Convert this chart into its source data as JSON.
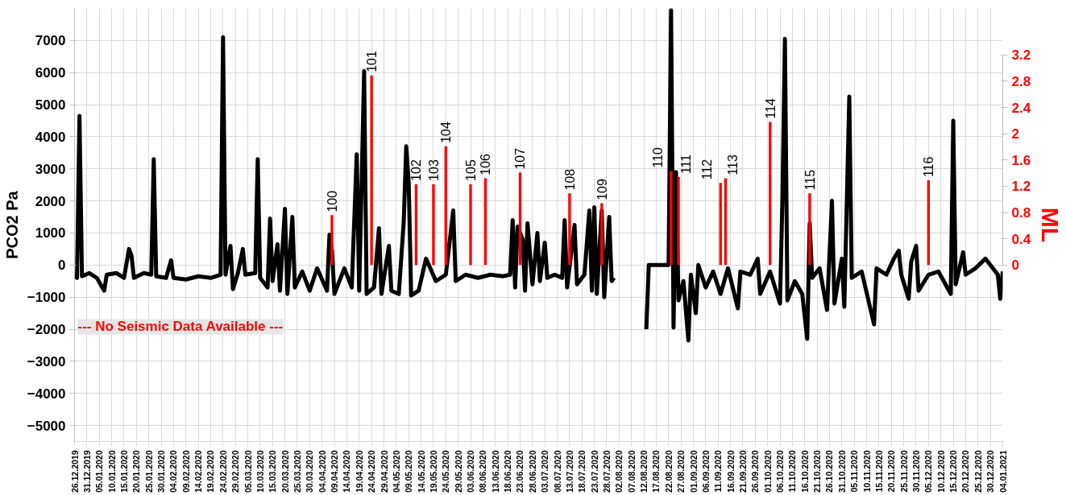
{
  "chart_data": {
    "type": "line",
    "ylabel": "PCO2 Pa",
    "y2label": "ML",
    "annotations": [
      "--- No Seismic Data Available ---",
      {
        "text": "100",
        "x": "2020-04-08",
        "y": 1550
      },
      {
        "text": "101",
        "x": "2020-04-24",
        "y": 5910
      },
      {
        "text": "102",
        "x": "2020-05-12",
        "y": 2520
      },
      {
        "text": "103",
        "x": "2020-05-19",
        "y": 2520
      },
      {
        "text": "104",
        "x": "2020-05-24",
        "y": 3700
      },
      {
        "text": "105",
        "x": "2020-06-03",
        "y": 2520
      },
      {
        "text": "106",
        "x": "2020-06-09",
        "y": 2700
      },
      {
        "text": "107",
        "x": "2020-06-23",
        "y": 2880
      },
      {
        "text": "108",
        "x": "2020-07-13",
        "y": 2230
      },
      {
        "text": "109",
        "x": "2020-07-26",
        "y": 1920
      },
      {
        "text": "110",
        "x": "2020-08-23",
        "y": 2930
      },
      {
        "text": "111",
        "x": "2020-08-26",
        "y": 2740
      },
      {
        "text": "112",
        "x": "2020-09-12",
        "y": 2560
      },
      {
        "text": "113",
        "x": "2020-09-14",
        "y": 2700
      },
      {
        "text": "114",
        "x": "2020-10-02",
        "y": 4460
      },
      {
        "text": "115",
        "x": "2020-10-18",
        "y": 2230
      },
      {
        "text": "116",
        "x": "2020-12-05",
        "y": 2640
      }
    ],
    "xlim": [
      "2019-12-26",
      "2021-01-04"
    ],
    "xticks": [
      {
        "value": "2019-12-26",
        "label": "26.12.2019"
      },
      {
        "value": "2019-12-31",
        "label": "31.12.2019"
      },
      {
        "value": "2020-01-05",
        "label": "05.01.2020"
      },
      {
        "value": "2020-01-10",
        "label": "10.01.2020"
      },
      {
        "value": "2020-01-15",
        "label": "15.01.2020"
      },
      {
        "value": "2020-01-20",
        "label": "20.01.2020"
      },
      {
        "value": "2020-01-25",
        "label": "25.01.2020"
      },
      {
        "value": "2020-01-30",
        "label": "30.01.2020"
      },
      {
        "value": "2020-02-04",
        "label": "04.02.2020"
      },
      {
        "value": "2020-02-09",
        "label": "09.02.2020"
      },
      {
        "value": "2020-02-14",
        "label": "14.02.2020"
      },
      {
        "value": "2020-02-19",
        "label": "19.02.2020"
      },
      {
        "value": "2020-02-24",
        "label": "24.02.2020"
      },
      {
        "value": "2020-02-29",
        "label": "29.02.2020"
      },
      {
        "value": "2020-03-05",
        "label": "05.03.2020"
      },
      {
        "value": "2020-03-10",
        "label": "10.03.2020"
      },
      {
        "value": "2020-03-15",
        "label": "15.03.2020"
      },
      {
        "value": "2020-03-20",
        "label": "20.03.2020"
      },
      {
        "value": "2020-03-25",
        "label": "25.03.2020"
      },
      {
        "value": "2020-03-30",
        "label": "30.03.2020"
      },
      {
        "value": "2020-04-04",
        "label": "04.04.2020"
      },
      {
        "value": "2020-04-09",
        "label": "09.04.2020"
      },
      {
        "value": "2020-04-14",
        "label": "14.04.2020"
      },
      {
        "value": "2020-04-19",
        "label": "19.04.2020"
      },
      {
        "value": "2020-04-24",
        "label": "24.04.2020"
      },
      {
        "value": "2020-04-29",
        "label": "29.04.2020"
      },
      {
        "value": "2020-05-04",
        "label": "04.05.2020"
      },
      {
        "value": "2020-05-09",
        "label": "09.05.2020"
      },
      {
        "value": "2020-05-14",
        "label": "14.05.2020"
      },
      {
        "value": "2020-05-19",
        "label": "19.05.2020"
      },
      {
        "value": "2020-05-24",
        "label": "24.05.2020"
      },
      {
        "value": "2020-05-29",
        "label": "29.05.2020"
      },
      {
        "value": "2020-06-03",
        "label": "03.06.2020"
      },
      {
        "value": "2020-06-08",
        "label": "08.06.2020"
      },
      {
        "value": "2020-06-13",
        "label": "13.06.2020"
      },
      {
        "value": "2020-06-18",
        "label": "18.06.2020"
      },
      {
        "value": "2020-06-23",
        "label": "23.06.2020"
      },
      {
        "value": "2020-06-28",
        "label": "28.06.2020"
      },
      {
        "value": "2020-07-03",
        "label": "03.07.2020"
      },
      {
        "value": "2020-07-08",
        "label": "08.07.2020"
      },
      {
        "value": "2020-07-13",
        "label": "13.07.2020"
      },
      {
        "value": "2020-07-18",
        "label": "18.07.2020"
      },
      {
        "value": "2020-07-23",
        "label": "23.07.2020"
      },
      {
        "value": "2020-07-28",
        "label": "28.07.2020"
      },
      {
        "value": "2020-08-02",
        "label": "02.08.2020"
      },
      {
        "value": "2020-08-07",
        "label": "07.08.2020"
      },
      {
        "value": "2020-08-12",
        "label": "12.08.2020"
      },
      {
        "value": "2020-08-17",
        "label": "17.08.2020"
      },
      {
        "value": "2020-08-22",
        "label": "22.08.2020"
      },
      {
        "value": "2020-08-27",
        "label": "27.08.2020"
      },
      {
        "value": "2020-09-01",
        "label": "01.09.2020"
      },
      {
        "value": "2020-09-06",
        "label": "06.09.2020"
      },
      {
        "value": "2020-09-11",
        "label": "11.09.2020"
      },
      {
        "value": "2020-09-16",
        "label": "16.09.2020"
      },
      {
        "value": "2020-09-21",
        "label": "21.09.2020"
      },
      {
        "value": "2020-09-26",
        "label": "26.09.2020"
      },
      {
        "value": "2020-10-01",
        "label": "01.10.2020"
      },
      {
        "value": "2020-10-06",
        "label": "06.10.2020"
      },
      {
        "value": "2020-10-11",
        "label": "11.10.2020"
      },
      {
        "value": "2020-10-16",
        "label": "16.10.2020"
      },
      {
        "value": "2020-10-21",
        "label": "21.10.2020"
      },
      {
        "value": "2020-10-26",
        "label": "26.10.2020"
      },
      {
        "value": "2020-10-31",
        "label": "31.10.2020"
      },
      {
        "value": "2020-11-05",
        "label": "05.11.2020"
      },
      {
        "value": "2020-11-10",
        "label": "10.11.2020"
      },
      {
        "value": "2020-11-15",
        "label": "15.11.2020"
      },
      {
        "value": "2020-11-20",
        "label": "20.11.2020"
      },
      {
        "value": "2020-11-25",
        "label": "25.11.2020"
      },
      {
        "value": "2020-11-30",
        "label": "30.11.2020"
      },
      {
        "value": "2020-12-05",
        "label": "05.12.2020"
      },
      {
        "value": "2020-12-10",
        "label": "10.12.2020"
      },
      {
        "value": "2020-12-15",
        "label": "15.12.2020"
      },
      {
        "value": "2020-12-20",
        "label": "20.12.2020"
      },
      {
        "value": "2020-12-25",
        "label": "25.12.2020"
      },
      {
        "value": "2020-12-30",
        "label": "30.12.2020"
      },
      {
        "value": "2021-01-04",
        "label": "04.01.2021"
      }
    ],
    "ylim": [
      -5500,
      8000
    ],
    "yticks": [
      -5000,
      -4000,
      -3000,
      -2000,
      -1000,
      0,
      1000,
      2000,
      3000,
      4000,
      5000,
      6000,
      7000
    ],
    "y2lim": [
      -2.69,
      3.91
    ],
    "y2ticks": [
      0,
      0.4,
      0.8,
      1.2,
      1.6,
      2,
      2.4,
      2.8,
      3.2
    ],
    "grid": true,
    "legend": false,
    "series": [
      {
        "color": "#000000",
        "x": [
          "2019-12-26",
          "2019-12-27",
          "2019-12-28",
          "2019-12-29",
          "2020-01-01",
          "2020-01-04",
          "2020-01-07",
          "2020-01-08",
          "2020-01-12",
          "2020-01-15",
          "2020-01-17",
          "2020-01-18",
          "2020-01-19",
          "2020-01-23",
          "2020-01-26",
          "2020-01-27",
          "2020-01-28",
          "2020-02-01",
          "2020-02-03",
          "2020-02-04",
          "2020-02-09",
          "2020-02-14",
          "2020-02-19",
          "2020-02-23",
          "2020-02-24",
          "2020-02-25",
          "2020-02-27",
          "2020-02-28",
          "2020-03-01",
          "2020-03-03",
          "2020-03-04",
          "2020-03-08",
          "2020-03-09",
          "2020-03-10",
          "2020-03-13",
          "2020-03-14",
          "2020-03-15",
          "2020-03-17",
          "2020-03-18",
          "2020-03-20",
          "2020-03-21",
          "2020-03-23",
          "2020-03-24",
          "2020-03-27",
          "2020-03-30",
          "2020-04-02",
          "2020-04-06",
          "2020-04-07",
          "2020-04-08",
          "2020-04-09",
          "2020-04-13",
          "2020-04-16",
          "2020-04-18",
          "2020-04-19",
          "2020-04-21",
          "2020-04-22",
          "2020-04-25",
          "2020-04-27",
          "2020-04-28",
          "2020-05-01",
          "2020-05-02",
          "2020-05-05",
          "2020-05-07",
          "2020-05-08",
          "2020-05-09",
          "2020-05-10",
          "2020-05-13",
          "2020-05-16",
          "2020-05-20",
          "2020-05-24",
          "2020-05-27",
          "2020-05-28",
          "2020-06-01",
          "2020-06-06",
          "2020-06-11",
          "2020-06-16",
          "2020-06-19",
          "2020-06-20",
          "2020-06-21",
          "2020-06-22",
          "2020-06-24",
          "2020-06-25",
          "2020-06-26",
          "2020-06-28",
          "2020-06-30",
          "2020-07-01",
          "2020-07-03",
          "2020-07-04",
          "2020-07-07",
          "2020-07-10",
          "2020-07-11",
          "2020-07-12",
          "2020-07-15",
          "2020-07-16",
          "2020-07-19",
          "2020-07-21",
          "2020-07-22",
          "2020-07-23",
          "2020-07-24",
          "2020-07-26",
          "2020-07-27",
          "2020-07-29",
          "2020-07-30",
          "2020-07-31",
          "2020-08-05",
          "2020-08-13",
          "2020-08-14",
          "2020-08-22",
          "2020-08-23",
          "2020-08-24",
          "2020-08-25",
          "2020-08-26",
          "2020-08-28",
          "2020-08-30",
          "2020-08-31",
          "2020-09-02",
          "2020-09-03",
          "2020-09-06",
          "2020-09-09",
          "2020-09-12",
          "2020-09-15",
          "2020-09-19",
          "2020-09-20",
          "2020-09-24",
          "2020-09-27",
          "2020-09-28",
          "2020-10-02",
          "2020-10-06",
          "2020-10-07",
          "2020-10-08",
          "2020-10-09",
          "2020-10-12",
          "2020-10-15",
          "2020-10-17",
          "2020-10-18",
          "2020-10-19",
          "2020-10-22",
          "2020-10-25",
          "2020-10-27",
          "2020-10-28",
          "2020-10-31",
          "2020-11-01",
          "2020-11-03",
          "2020-11-04",
          "2020-11-08",
          "2020-11-13",
          "2020-11-14",
          "2020-11-18",
          "2020-11-21",
          "2020-11-23",
          "2020-11-24",
          "2020-11-27",
          "2020-11-28",
          "2020-11-30",
          "2020-12-01",
          "2020-12-05",
          "2020-12-09",
          "2020-12-14",
          "2020-12-15",
          "2020-12-16",
          "2020-12-19",
          "2020-12-20",
          "2020-12-24",
          "2020-12-28",
          "2021-01-02",
          "2021-01-03",
          "2021-01-04"
        ],
        "values": [
          -300,
          -400,
          4650,
          -350,
          -250,
          -400,
          -800,
          -300,
          -250,
          -400,
          500,
          300,
          -400,
          -250,
          -300,
          3300,
          -350,
          -400,
          150,
          -400,
          -450,
          -350,
          -400,
          -300,
          7100,
          -300,
          600,
          -750,
          -250,
          500,
          -300,
          -250,
          3300,
          -400,
          -700,
          1450,
          -500,
          650,
          -800,
          1750,
          -900,
          1500,
          -700,
          -200,
          -800,
          -100,
          -800,
          950,
          450,
          -900,
          -100,
          -700,
          3450,
          -800,
          6050,
          -900,
          -700,
          1150,
          -900,
          600,
          -800,
          -900,
          1350,
          3700,
          2600,
          -950,
          -800,
          200,
          -500,
          -300,
          1700,
          -500,
          -300,
          -400,
          -300,
          -350,
          -300,
          1400,
          -700,
          1200,
          800,
          -800,
          1300,
          -600,
          1000,
          -500,
          700,
          -400,
          -300,
          -400,
          1400,
          -700,
          1250,
          -600,
          -300,
          1700,
          -800,
          1800,
          -900,
          1700,
          -1000,
          1500,
          -500,
          -400,
          null,
          -2000,
          0,
          0,
          7950,
          -1950,
          2900,
          -1100,
          -500,
          -2350,
          -300,
          -1500,
          0,
          -700,
          -200,
          -900,
          -100,
          -1350,
          -200,
          -300,
          200,
          -900,
          -200,
          -1200,
          2100,
          7050,
          -1100,
          -500,
          -900,
          -2300,
          1300,
          -400,
          -100,
          -1400,
          2000,
          -1200,
          200,
          -1300,
          5250,
          -400,
          -200,
          -1850,
          -100,
          -300,
          200,
          450,
          -300,
          -1050,
          100,
          600,
          -800,
          -300,
          -200,
          -900,
          4500,
          -600,
          400,
          -300,
          -100,
          200,
          -300,
          -1050,
          -200
        ]
      },
      {
        "type": "bar",
        "axis": "y2",
        "color": "#ff0000",
        "x": [
          "2020-04-08",
          "2020-04-24",
          "2020-05-12",
          "2020-05-19",
          "2020-05-24",
          "2020-06-03",
          "2020-06-09",
          "2020-06-23",
          "2020-07-13",
          "2020-07-26",
          "2020-08-23",
          "2020-08-26",
          "2020-09-12",
          "2020-09-14",
          "2020-10-02",
          "2020-10-18",
          "2020-12-05"
        ],
        "values": [
          0.76,
          2.89,
          1.23,
          1.23,
          1.81,
          1.23,
          1.32,
          1.41,
          1.09,
          0.94,
          1.43,
          1.34,
          1.25,
          1.32,
          2.18,
          1.09,
          1.29
        ]
      }
    ]
  }
}
